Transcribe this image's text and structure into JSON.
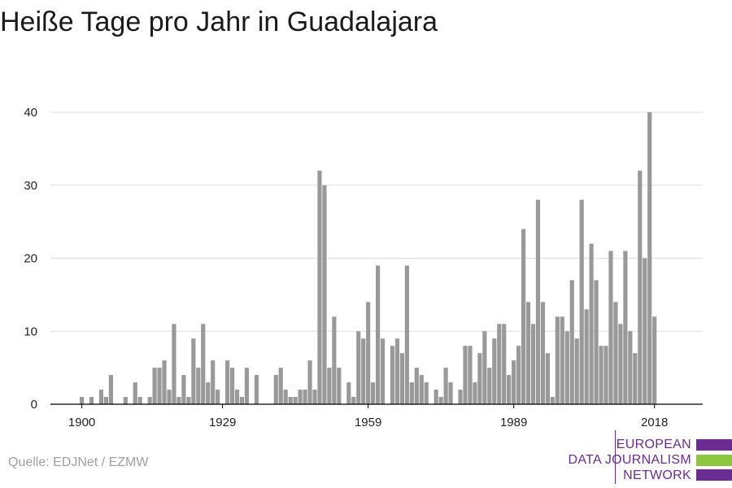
{
  "title": "Heiße Tage pro Jahr in Guadalajara",
  "source": "Quelle: EDJNet / EZMW",
  "logo": {
    "lines": [
      "EUROPEAN",
      "DATA JOURNALISM",
      "NETWORK"
    ],
    "colors": {
      "purple": "#6a2c91",
      "green": "#8cc63f"
    }
  },
  "colors": {
    "bar": "#999999",
    "grid": "#dddddd",
    "axis": "#000000"
  },
  "chart_data": {
    "type": "bar",
    "title": "Heiße Tage pro Jahr in Guadalajara",
    "xlabel": "",
    "ylabel": "",
    "ylim": [
      0,
      40
    ],
    "yticks": [
      0,
      10,
      20,
      30,
      40
    ],
    "xticks": [
      1900,
      1929,
      1959,
      1989,
      2018
    ],
    "grid": true,
    "x_start": 1900,
    "values": [
      1,
      0,
      1,
      0,
      2,
      1,
      4,
      0,
      0,
      1,
      0,
      3,
      1,
      0,
      1,
      5,
      5,
      6,
      2,
      11,
      1,
      4,
      1,
      9,
      5,
      11,
      3,
      6,
      2,
      0,
      6,
      5,
      2,
      1,
      5,
      0,
      4,
      0,
      0,
      0,
      4,
      5,
      2,
      1,
      1,
      2,
      2,
      6,
      2,
      32,
      30,
      5,
      12,
      5,
      0,
      3,
      1,
      10,
      9,
      14,
      3,
      19,
      9,
      0,
      8,
      9,
      7,
      19,
      3,
      5,
      4,
      3,
      0,
      2,
      1,
      5,
      3,
      0,
      2,
      8,
      8,
      3,
      7,
      10,
      5,
      9,
      11,
      11,
      4,
      6,
      8,
      24,
      14,
      11,
      28,
      14,
      7,
      1,
      12,
      12,
      10,
      17,
      9,
      28,
      13,
      22,
      17,
      8,
      8,
      21,
      14,
      11,
      21,
      10,
      7,
      32,
      20,
      40,
      12
    ]
  }
}
